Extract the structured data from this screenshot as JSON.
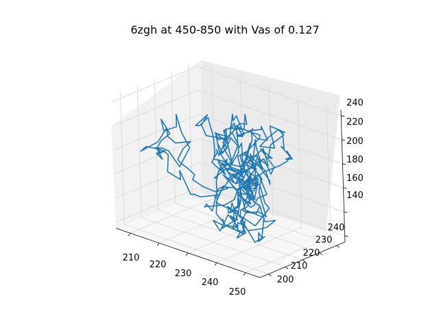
{
  "chart_data": {
    "type": "line",
    "projection": "3d",
    "title": "6zgh at 450-850 with Vas of 0.127",
    "xlabel": "",
    "ylabel": "",
    "zlabel": "",
    "x_ticks": [
      "210",
      "220",
      "230",
      "240",
      "250"
    ],
    "y_ticks": [
      "200",
      "210",
      "220",
      "230",
      "240"
    ],
    "z_ticks": [
      "140",
      "160",
      "180",
      "200",
      "220",
      "240"
    ],
    "xlim": [
      205,
      255
    ],
    "ylim": [
      195,
      245
    ],
    "zlim": [
      135,
      245
    ],
    "grid": true,
    "series": [
      {
        "color": "#1f77b4",
        "point_count": 400,
        "x_range": [
          206,
          250
        ],
        "y_range": [
          197,
          243
        ],
        "z_range": [
          140,
          243
        ]
      }
    ]
  }
}
